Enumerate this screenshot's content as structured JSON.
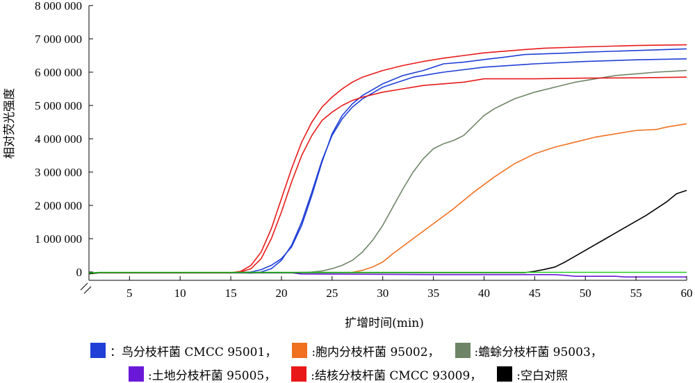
{
  "chart_data": {
    "type": "line",
    "title": "",
    "xlabel": "扩增时间(min)",
    "ylabel": "相对荧光强度",
    "xlim": [
      1,
      60
    ],
    "ylim": [
      -250000,
      8000000
    ],
    "x_ticks": [
      5,
      10,
      15,
      20,
      25,
      30,
      35,
      40,
      45,
      50,
      55,
      60
    ],
    "x_tick_labels": [
      "5",
      "10",
      "15",
      "20",
      "25",
      "30",
      "35",
      "40",
      "45",
      "50",
      "55",
      "60"
    ],
    "y_ticks": [
      0,
      1000000,
      2000000,
      3000000,
      4000000,
      5000000,
      6000000,
      7000000,
      8000000
    ],
    "y_tick_labels": [
      "0",
      "1 000 000",
      "2 000 000",
      "3 000 000",
      "4 000 000",
      "5 000 000",
      "6 000 000",
      "7 000 000",
      "8 000 000"
    ],
    "grid": false,
    "legend_position": "bottom",
    "series": [
      {
        "name": "鸟分枝杆菌 CMCC 95001",
        "color": "#1f3fd6",
        "x": [
          1,
          2,
          15,
          16,
          17,
          18,
          19,
          20,
          21,
          22,
          23,
          24,
          25,
          26,
          27,
          28,
          30,
          33,
          36,
          40,
          45,
          50,
          55,
          60
        ],
        "y": [
          -50000,
          -20000,
          -20000,
          -20000,
          -30000,
          0,
          100000,
          350000,
          800000,
          1500000,
          2400000,
          3350000,
          4100000,
          4600000,
          4950000,
          5200000,
          5550000,
          5850000,
          6000000,
          6150000,
          6250000,
          6320000,
          6370000,
          6400000
        ]
      },
      {
        "name": "鸟分枝杆菌 CMCC 95001",
        "color": "#1f3fd6",
        "x": [
          15,
          16,
          17,
          18,
          19,
          20,
          21,
          22,
          23,
          24,
          25,
          26,
          27,
          28,
          30,
          32,
          34,
          36,
          38,
          40,
          42,
          44,
          46,
          48,
          50,
          55,
          60
        ],
        "y": [
          -20000,
          -10000,
          0,
          70000,
          200000,
          400000,
          750000,
          1400000,
          2300000,
          3300000,
          4150000,
          4700000,
          5050000,
          5300000,
          5650000,
          5900000,
          6050000,
          6250000,
          6300000,
          6380000,
          6450000,
          6530000,
          6550000,
          6570000,
          6600000,
          6650000,
          6700000
        ]
      },
      {
        "name": "胞内分枝杆菌 95002",
        "color": "#f07020",
        "x": [
          1,
          2,
          27,
          28,
          29,
          30,
          31,
          33,
          35,
          37,
          39,
          41,
          43,
          45,
          47,
          49,
          51,
          53,
          55,
          57,
          58,
          60
        ],
        "y": [
          -50000,
          -20000,
          -10000,
          50000,
          150000,
          300000,
          550000,
          1000000,
          1450000,
          1900000,
          2400000,
          2850000,
          3250000,
          3550000,
          3750000,
          3900000,
          4050000,
          4150000,
          4250000,
          4280000,
          4350000,
          4450000
        ]
      },
      {
        "name": "蟾蜍分枝杆菌 95003",
        "color": "#6e8466",
        "x": [
          1,
          2,
          21,
          22,
          23,
          24,
          25,
          26,
          27,
          28,
          29,
          30,
          31,
          32,
          33,
          34,
          35,
          36,
          37,
          38,
          39,
          40,
          41,
          42,
          43,
          44,
          45,
          47,
          49,
          51,
          53,
          55,
          57,
          60
        ],
        "y": [
          -50000,
          -20000,
          -20000,
          -10000,
          0,
          30000,
          100000,
          200000,
          350000,
          600000,
          950000,
          1400000,
          1950000,
          2500000,
          3000000,
          3400000,
          3700000,
          3850000,
          3950000,
          4100000,
          4400000,
          4700000,
          4900000,
          5050000,
          5200000,
          5300000,
          5400000,
          5550000,
          5700000,
          5800000,
          5900000,
          5950000,
          6000000,
          6050000
        ]
      },
      {
        "name": "土地分枝杆菌 95005",
        "color": "#6a18d8",
        "x": [
          1,
          2,
          21,
          22,
          35,
          40,
          45,
          47,
          48,
          49,
          50,
          52,
          53,
          54,
          55,
          60
        ],
        "y": [
          -50000,
          -20000,
          -20000,
          -60000,
          -80000,
          -80000,
          -80000,
          -80000,
          -100000,
          -130000,
          -130000,
          -130000,
          -130000,
          -150000,
          -150000,
          -150000
        ]
      },
      {
        "name": "结核分枝杆菌 CMCC 93009",
        "color": "#e81818",
        "x": [
          1,
          2,
          15,
          16,
          17,
          18,
          19,
          20,
          21,
          22,
          23,
          24,
          25,
          26,
          27,
          28,
          30,
          32,
          34,
          36,
          38,
          40,
          45,
          50,
          55,
          60
        ],
        "y": [
          -50000,
          -20000,
          -20000,
          0,
          100000,
          400000,
          1000000,
          1800000,
          2700000,
          3500000,
          4100000,
          4550000,
          4800000,
          5000000,
          5150000,
          5250000,
          5400000,
          5500000,
          5600000,
          5650000,
          5700000,
          5800000,
          5800000,
          5820000,
          5830000,
          5850000
        ]
      },
      {
        "name": "结核分枝杆菌 CMCC 93009",
        "color": "#e81818",
        "x": [
          1,
          2,
          15,
          16,
          17,
          18,
          19,
          20,
          21,
          22,
          23,
          24,
          25,
          26,
          27,
          28,
          30,
          32,
          34,
          36,
          38,
          40,
          42,
          44,
          46,
          48,
          50,
          55,
          60
        ],
        "y": [
          -50000,
          -20000,
          -20000,
          20000,
          200000,
          600000,
          1300000,
          2200000,
          3100000,
          3900000,
          4500000,
          4950000,
          5250000,
          5500000,
          5700000,
          5850000,
          6050000,
          6200000,
          6320000,
          6420000,
          6500000,
          6580000,
          6630000,
          6680000,
          6720000,
          6740000,
          6760000,
          6800000,
          6820000
        ]
      },
      {
        "name": "空白对照",
        "color": "#000000",
        "x": [
          1,
          2,
          44,
          45,
          46,
          47,
          48,
          50,
          52,
          54,
          56,
          58,
          59,
          60
        ],
        "y": [
          -50000,
          -20000,
          -20000,
          20000,
          80000,
          150000,
          300000,
          650000,
          1000000,
          1350000,
          1700000,
          2100000,
          2350000,
          2450000
        ]
      },
      {
        "name": "",
        "color": "#22cc22",
        "x": [
          1,
          2,
          60
        ],
        "y": [
          -30000,
          -10000,
          -10000
        ]
      }
    ]
  },
  "legend": {
    "row1": [
      {
        "color": "#1f3fd6",
        "label": "：鸟分枝杆菌 CMCC 95001，"
      },
      {
        "color": "#f07020",
        "label": ":胞内分枝杆菌 95002，"
      },
      {
        "color": "#6e8466",
        "label": ":蟾蜍分枝杆菌 95003，"
      }
    ],
    "row2": [
      {
        "color": "#6a18d8",
        "label": ":土地分枝杆菌 95005，"
      },
      {
        "color": "#e81818",
        "label": ":结核分枝杆菌 CMCC 93009，"
      },
      {
        "color": "#000000",
        "label": ":空白对照"
      }
    ]
  }
}
